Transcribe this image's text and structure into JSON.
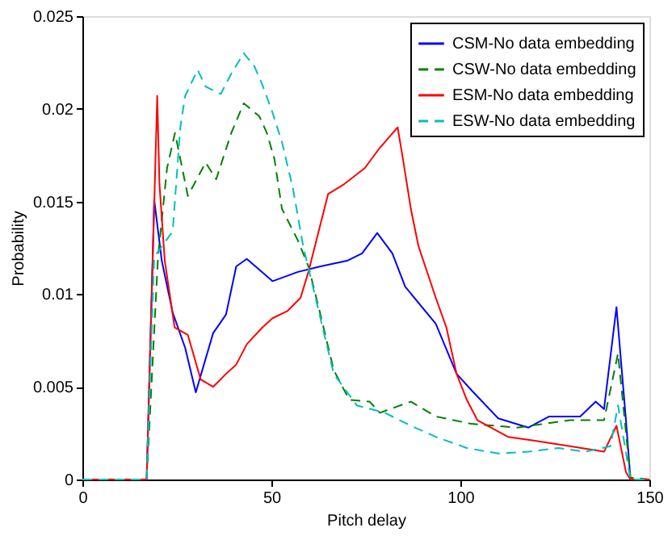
{
  "chart_data": {
    "type": "line",
    "xlabel": "Pitch delay",
    "ylabel": "Probability",
    "xlim": [
      0,
      150
    ],
    "ylim": [
      0,
      0.025
    ],
    "xticks": [
      0,
      50,
      100,
      150
    ],
    "yticks": [
      0,
      0.005,
      0.01,
      0.015,
      0.02,
      0.025
    ],
    "grid": false,
    "legend": "top right",
    "marker": "none",
    "series": [
      {
        "name": "CSM-No data embedding",
        "color": "#0000ff",
        "line_style": "solid",
        "x": [
          0,
          17,
          19,
          21,
          23.9,
          27.2,
          30,
          34.6,
          38,
          40.7,
          43.5,
          50.3,
          57,
          63,
          70,
          74,
          78,
          82,
          85.4,
          93.5,
          99,
          103,
          110,
          118,
          123.5,
          131.7,
          135.8,
          138,
          141.3,
          143.8,
          145,
          150
        ],
        "values": [
          0,
          0,
          0.0151,
          0.0118,
          0.009,
          0.0071,
          0.0047,
          0.0079,
          0.0089,
          0.0115,
          0.0119,
          0.0107,
          0.0112,
          0.0115,
          0.0118,
          0.0122,
          0.0133,
          0.0122,
          0.0104,
          0.0084,
          0.0057,
          0.0048,
          0.0033,
          0.0028,
          0.0034,
          0.0034,
          0.0042,
          0.0038,
          0.0093,
          0.0032,
          0,
          0
        ]
      },
      {
        "name": "CSW-No data embedding",
        "color": "#008000",
        "line_style": "dashed",
        "x": [
          0,
          17,
          20,
          22.4,
          24.5,
          27.9,
          32.6,
          35.4,
          39.4,
          42.7,
          46.8,
          48.8,
          50.8,
          52.8,
          57,
          59.8,
          62.5,
          66.5,
          70.6,
          76,
          78.7,
          86.9,
          93.5,
          103,
          115,
          129,
          138,
          141.7,
          145,
          150
        ],
        "values": [
          0,
          0,
          0.012,
          0.0168,
          0.0187,
          0.0153,
          0.0171,
          0.0162,
          0.0187,
          0.0203,
          0.0196,
          0.0187,
          0.0173,
          0.0146,
          0.0129,
          0.0115,
          0.0093,
          0.0059,
          0.0043,
          0.0042,
          0.0036,
          0.0042,
          0.0034,
          0.003,
          0.0028,
          0.0032,
          0.0032,
          0.0068,
          0.0001,
          0
        ]
      },
      {
        "name": "ESM-No data embedding",
        "color": "#ff0000",
        "line_style": "solid",
        "x": [
          0,
          17,
          19.8,
          20.4,
          21.8,
          24.4,
          27.9,
          31.3,
          34.6,
          38,
          40.7,
          43.5,
          47.6,
          50.3,
          54.3,
          57.7,
          59.8,
          65,
          69,
          74.7,
          78.7,
          80,
          83.4,
          84.8,
          86.9,
          88.9,
          93.5,
          96.3,
          99,
          101.7,
          104.5,
          112.6,
          119.4,
          129,
          138,
          141.3,
          143.8,
          145,
          150
        ],
        "values": [
          0,
          0,
          0.0207,
          0.0159,
          0.0118,
          0.0082,
          0.0078,
          0.0054,
          0.005,
          0.0057,
          0.0062,
          0.0073,
          0.0082,
          0.0087,
          0.0091,
          0.0098,
          0.0112,
          0.0154,
          0.0159,
          0.0168,
          0.0179,
          0.0182,
          0.019,
          0.0173,
          0.0146,
          0.0126,
          0.0098,
          0.0082,
          0.0057,
          0.0043,
          0.0032,
          0.0023,
          0.0021,
          0.0018,
          0.0015,
          0.0029,
          0.0004,
          0,
          0
        ]
      },
      {
        "name": "ESW-No data embedding",
        "color": "#00bfbf",
        "line_style": "dashed",
        "x": [
          0,
          17,
          19,
          23.9,
          25.9,
          27.2,
          30.5,
          32.6,
          36.6,
          39.4,
          42.7,
          45.5,
          47.6,
          50.3,
          52.8,
          55.7,
          58.4,
          66.5,
          72.6,
          80,
          86.9,
          93.5,
          101.7,
          110,
          118,
          126,
          133,
          139.7,
          141.7,
          145,
          150
        ],
        "values": [
          0,
          0,
          0.012,
          0.0134,
          0.019,
          0.0207,
          0.0221,
          0.0212,
          0.0208,
          0.0219,
          0.023,
          0.0223,
          0.0213,
          0.0198,
          0.0182,
          0.0157,
          0.0126,
          0.0057,
          0.004,
          0.0036,
          0.0029,
          0.0023,
          0.0017,
          0.0014,
          0.0015,
          0.0017,
          0.0015,
          0.0018,
          0.004,
          0,
          0
        ]
      }
    ]
  }
}
